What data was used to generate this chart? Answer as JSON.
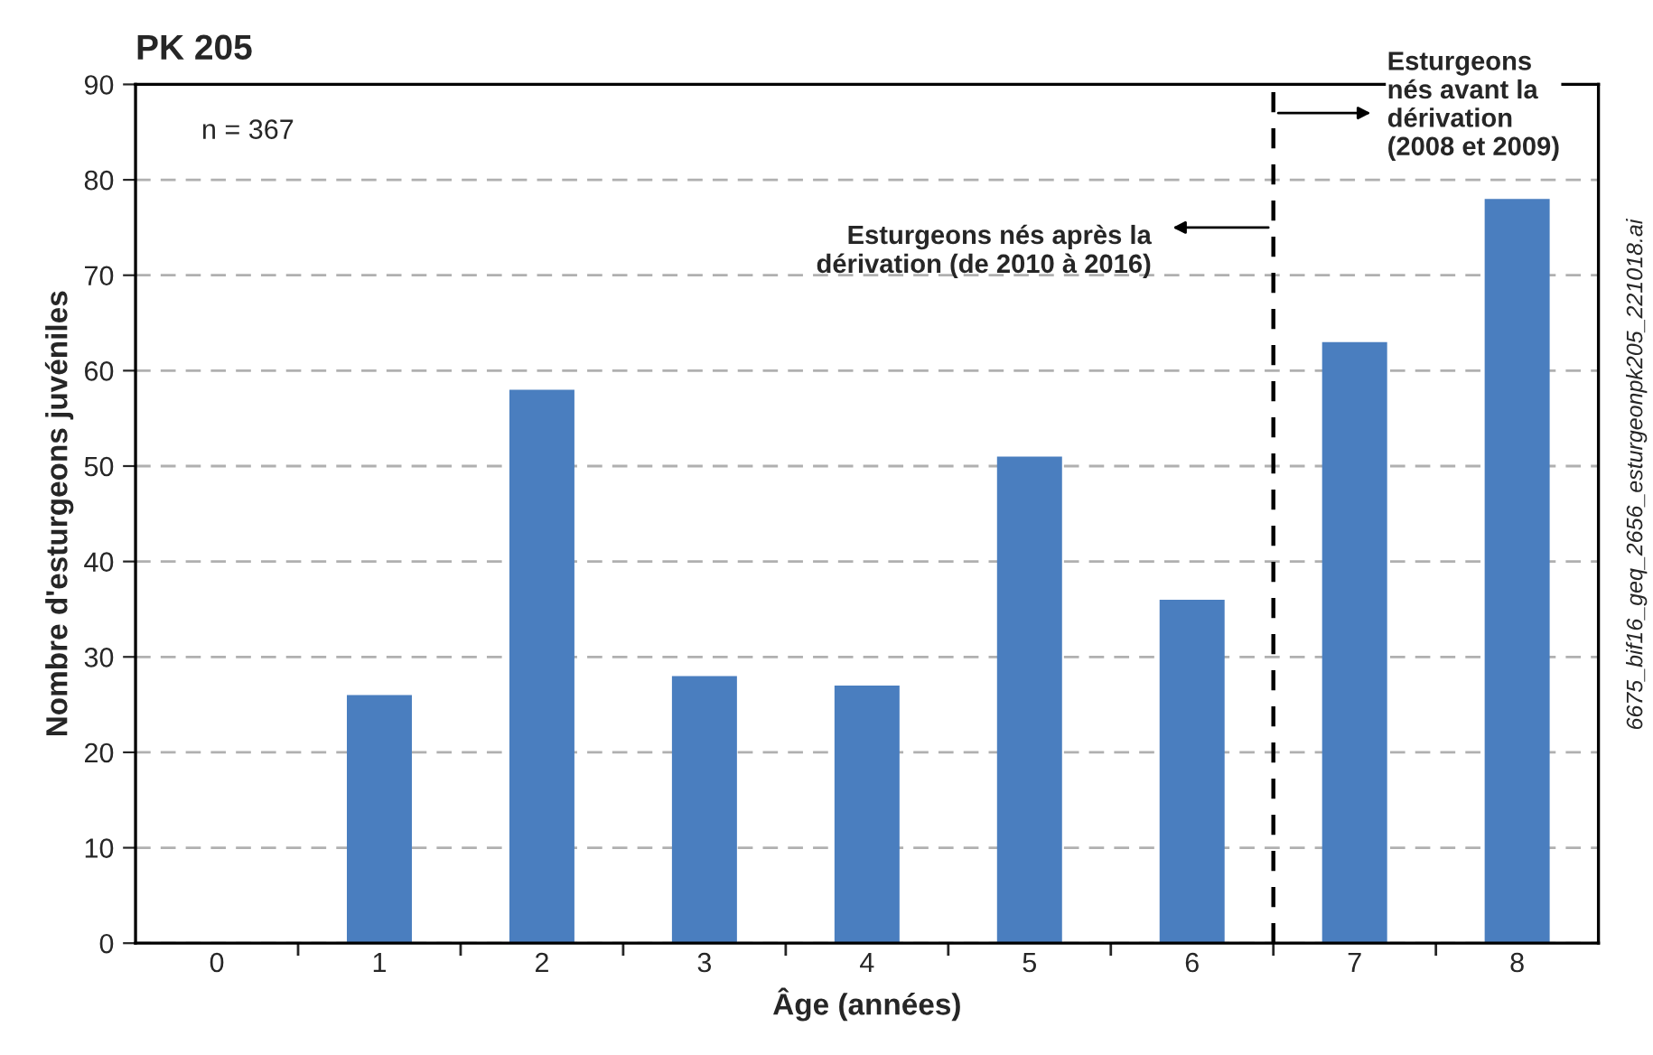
{
  "chart_data": {
    "type": "bar",
    "title": "PK 205",
    "xlabel": "Âge (années)",
    "ylabel": "Nombre d'esturgeons juvéniles",
    "x": [
      0,
      1,
      2,
      3,
      4,
      5,
      6,
      7,
      8
    ],
    "xlim": [
      -0.5,
      8.5
    ],
    "xticks": [
      0,
      1,
      2,
      3,
      4,
      5,
      6,
      7,
      8,
      {
        "value": 0.5,
        "label": null
      },
      {
        "value": 1.5,
        "label": null
      },
      {
        "value": 2.5,
        "label": null
      },
      {
        "value": 3.5,
        "label": null
      },
      {
        "value": 4.5,
        "label": null
      },
      {
        "value": 5.5,
        "label": null
      },
      {
        "value": 6.5,
        "label": null
      },
      {
        "value": 7.5,
        "label": null
      }
    ],
    "ref_lines": [
      {
        "axis": "x",
        "value": 6.5,
        "line_style": "dashed",
        "color": "#000000"
      }
    ],
    "values": [
      0,
      26,
      58,
      28,
      27,
      51,
      36,
      63,
      78
    ],
    "color": "#4a7ebf",
    "ylim": [
      0,
      90
    ],
    "yticks": [
      0,
      10,
      20,
      30,
      40,
      50,
      60,
      70,
      80,
      90
    ],
    "grid": "y",
    "annotations": [
      "n = 367",
      {
        "text": "Esturgeons nés après la\ndérivation (de 2010 à 2016)",
        "x": 6.5,
        "y": 75
      },
      {
        "text": "Esturgeons\nnés avant la\ndérivation\n(2008 et 2009)",
        "x": 6.5,
        "y": 87
      },
      "6675_bif16_geq_2656_esturgeonpk205_221018.ai"
    ]
  }
}
